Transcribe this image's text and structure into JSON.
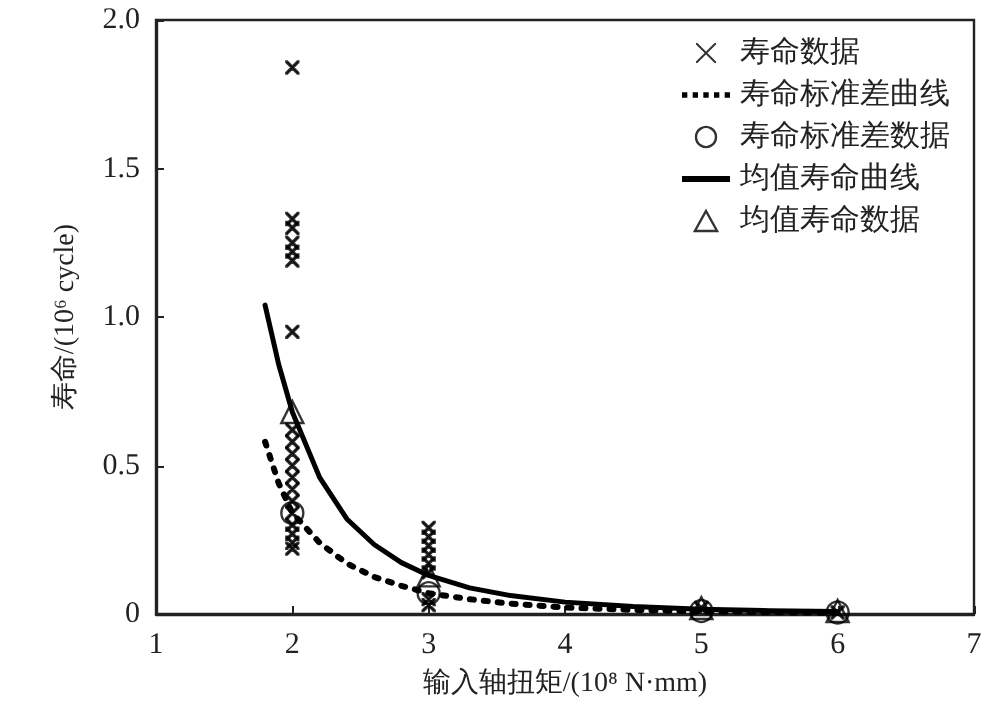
{
  "chart_data": {
    "type": "scatter",
    "xlabel": "输入轴扭矩/(10⁸ N·mm)",
    "ylabel": "寿命/(10⁶ cycle)",
    "xlim": [
      1,
      7
    ],
    "xticks": [
      1,
      2,
      3,
      4,
      5,
      6,
      7
    ],
    "ylim": [
      0,
      2
    ],
    "yticks": [
      0,
      0.5,
      {
        "value": 1,
        "label": "1.0"
      },
      1.5,
      {
        "value": 2,
        "label": "2.0"
      }
    ],
    "grid": false,
    "legend": "top right",
    "series": [
      {
        "name": "寿命数据",
        "type": "scatter",
        "marker": "cross",
        "color": "#000000",
        "x": [
          2,
          2,
          2,
          2,
          2,
          2,
          2,
          2,
          2,
          2,
          2,
          2,
          2,
          2,
          2,
          2,
          2,
          2,
          2,
          3,
          3,
          3,
          3,
          3,
          3,
          3,
          3,
          5,
          6
        ],
        "values": [
          1.84,
          1.33,
          1.3,
          1.25,
          1.22,
          1.19,
          0.95,
          0.62,
          0.58,
          0.54,
          0.5,
          0.46,
          0.42,
          0.38,
          0.34,
          0.3,
          0.27,
          0.24,
          0.22,
          0.29,
          0.26,
          0.23,
          0.2,
          0.17,
          0.14,
          0.05,
          0.03,
          0.02,
          0.005
        ]
      },
      {
        "name": "寿命标准差曲线",
        "type": "line",
        "marker": "none",
        "line_style": "dotted",
        "color": "#000000",
        "x": [
          1.8,
          1.9,
          2,
          2.2,
          2.4,
          2.6,
          2.8,
          3,
          3.3,
          3.6,
          4,
          4.5,
          5,
          5.5,
          6
        ],
        "values": [
          0.58,
          0.44,
          0.34,
          0.24,
          0.17,
          0.125,
          0.095,
          0.07,
          0.05,
          0.035,
          0.022,
          0.014,
          0.009,
          0.006,
          0.004
        ]
      },
      {
        "name": "寿命标准差数据",
        "type": "scatter",
        "marker": "circle",
        "color": "#000000",
        "x": [
          2,
          3,
          5,
          6
        ],
        "values": [
          0.34,
          0.07,
          0.01,
          0.005
        ]
      },
      {
        "name": "均值寿命曲线",
        "type": "line",
        "marker": "none",
        "line_style": "solid",
        "color": "#000000",
        "x": [
          1.8,
          1.9,
          2,
          2.2,
          2.4,
          2.6,
          2.8,
          3,
          3.3,
          3.6,
          4,
          4.5,
          5,
          5.5,
          6
        ],
        "values": [
          1.04,
          0.84,
          0.68,
          0.46,
          0.32,
          0.234,
          0.173,
          0.13,
          0.088,
          0.062,
          0.04,
          0.025,
          0.016,
          0.011,
          0.008
        ]
      },
      {
        "name": "均值寿命数据",
        "type": "scatter",
        "marker": "triangle",
        "color": "#000000",
        "x": [
          2,
          3,
          5,
          6
        ],
        "values": [
          0.68,
          0.13,
          0.02,
          0.01
        ]
      }
    ]
  }
}
